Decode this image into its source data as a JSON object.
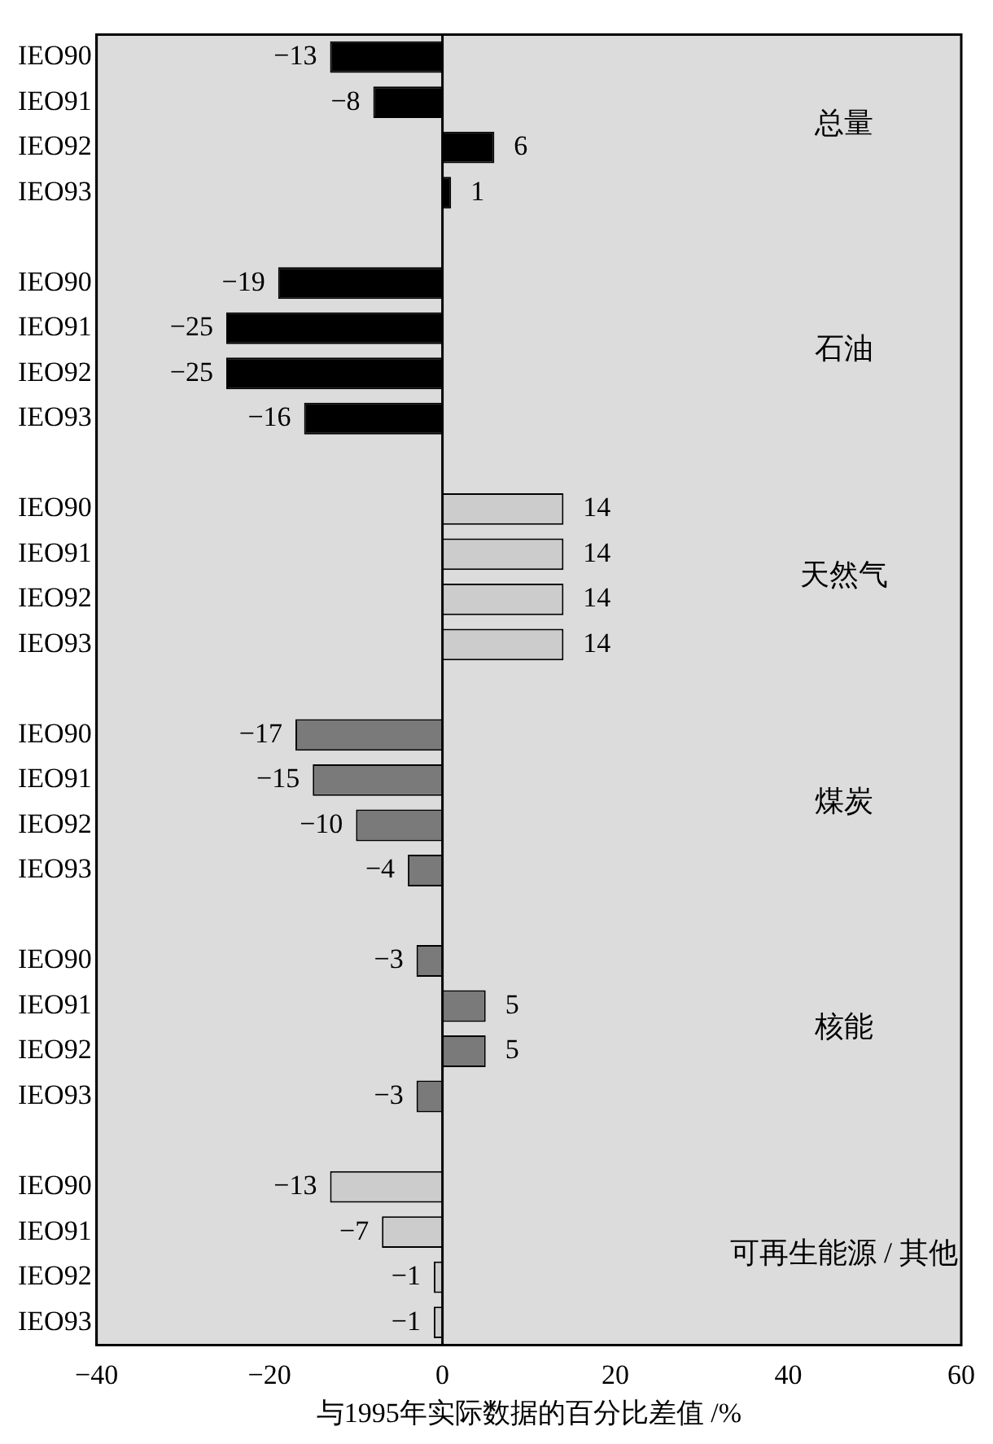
{
  "chart_data": {
    "type": "bar",
    "orientation": "horizontal",
    "xlabel": "与1995年实际数据的百分比差值 /%",
    "categories": [
      "IEO90",
      "IEO91",
      "IEO92",
      "IEO93",
      null,
      "IEO90",
      "IEO91",
      "IEO92",
      "IEO93",
      null,
      "IEO90",
      "IEO91",
      "IEO92",
      "IEO93",
      null,
      "IEO90",
      "IEO91",
      "IEO92",
      "IEO93",
      null,
      "IEO90",
      "IEO91",
      "IEO92",
      "IEO93",
      null,
      "IEO90",
      "IEO91",
      "IEO92",
      "IEO93"
    ],
    "values": [
      -13,
      -8,
      6,
      1,
      null,
      -19,
      -25,
      -25,
      -16,
      null,
      14,
      14,
      14,
      14,
      null,
      -17,
      -15,
      -10,
      -4,
      null,
      -3,
      5,
      5,
      -3,
      null,
      -13,
      -7,
      -1,
      -1
    ],
    "value_labels": [
      "−13",
      "−8",
      "6",
      "1",
      null,
      "−19",
      "−25",
      "−25",
      "−16",
      null,
      "14",
      "14",
      "14",
      "14",
      null,
      "−17",
      "−15",
      "−10",
      "−4",
      null,
      "−3",
      "5",
      "5",
      "−3",
      null,
      "−13",
      "−7",
      "−1",
      "−1"
    ],
    "colors": [
      "#000000",
      "#000000",
      "#000000",
      "#000000",
      null,
      "#000000",
      "#000000",
      "#000000",
      "#000000",
      null,
      "#cccccc",
      "#cccccc",
      "#cccccc",
      "#cccccc",
      null,
      "#7a7a7a",
      "#7a7a7a",
      "#7a7a7a",
      "#7a7a7a",
      null,
      "#7a7a7a",
      "#7a7a7a",
      "#7a7a7a",
      "#7a7a7a",
      null,
      "#cccccc",
      "#cccccc",
      "#cccccc",
      "#cccccc"
    ],
    "annotations": [
      "总量",
      "石油",
      "天然气",
      "煤炭",
      "核能",
      "可再生能源 / 其他"
    ],
    "xlim": [
      -40,
      60
    ],
    "xticks": [
      {
        "value": -40,
        "label": "−40"
      },
      {
        "value": -20,
        "label": "−20"
      },
      0,
      20,
      40,
      60
    ],
    "ref_lines": [
      {
        "axis": "x",
        "value": 0,
        "color": "#000000"
      }
    ],
    "grid": false,
    "legend": false
  }
}
